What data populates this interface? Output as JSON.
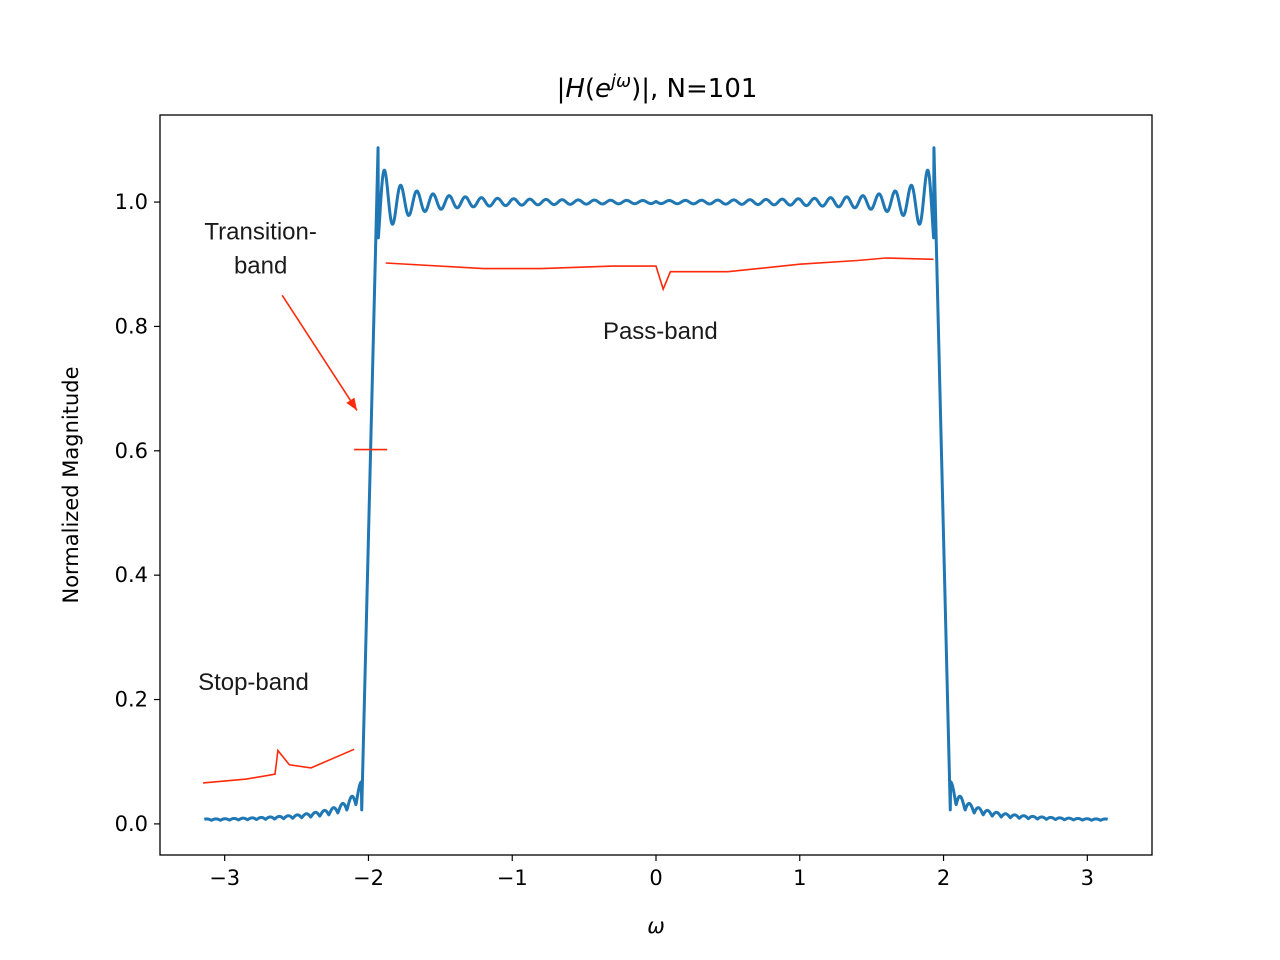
{
  "chart_data": {
    "type": "line",
    "title": {
      "prefix": "|",
      "H": "H",
      "open": "(",
      "e": "e",
      "sup": "jω",
      "close": ")|, N=101"
    },
    "xlabel": "ω",
    "ylabel": "Normalized Magnitude",
    "xlim": [
      -3.45,
      3.45
    ],
    "ylim": [
      -0.05,
      1.14
    ],
    "xticks": [
      -3,
      -2,
      -1,
      0,
      1,
      2,
      3
    ],
    "xtick_labels": [
      "−3",
      "−2",
      "−1",
      "0",
      "1",
      "2",
      "3"
    ],
    "yticks": [
      0.0,
      0.2,
      0.4,
      0.6,
      0.8,
      1.0
    ],
    "ytick_labels": [
      "0.0",
      "0.2",
      "0.4",
      "0.6",
      "0.8",
      "1.0"
    ],
    "series": [
      {
        "color": "#1f77b4",
        "sampled": {
          "x": [
            -3.1416,
            -3.0,
            -2.8,
            -2.6,
            -2.4,
            -2.3,
            -2.2,
            -2.15,
            -2.1,
            -2.07,
            -2.05,
            -2.03,
            -2.0,
            -1.97,
            -1.95,
            -1.93,
            -1.91,
            -1.88,
            -1.85,
            -1.8,
            -1.6,
            -1.2,
            -0.8,
            -0.4,
            0.0,
            0.4,
            0.8,
            1.2,
            1.6,
            1.8,
            1.85,
            1.88,
            1.91,
            1.93,
            1.95,
            1.97,
            2.0,
            2.03,
            2.05,
            2.07,
            2.1,
            2.15,
            2.2,
            2.3,
            2.4,
            2.6,
            2.8,
            3.0,
            3.1416
          ],
          "y": [
            0.005,
            0.007,
            0.01,
            0.012,
            0.016,
            0.02,
            0.03,
            0.045,
            0.09,
            0.01,
            0.2,
            0.4,
            0.6,
            0.8,
            0.95,
            1.09,
            1.0,
            0.96,
            1.03,
            0.97,
            1.01,
            1.0,
            1.0,
            1.0,
            1.0,
            1.0,
            1.0,
            1.0,
            1.01,
            0.97,
            1.03,
            0.96,
            1.0,
            1.09,
            0.95,
            0.8,
            0.6,
            0.4,
            0.2,
            0.01,
            0.09,
            0.045,
            0.03,
            0.02,
            0.016,
            0.012,
            0.01,
            0.007,
            0.005
          ]
        }
      }
    ],
    "annotation_color": "#ff2a0a",
    "annotations": [
      {
        "text": [
          "Transition-",
          "band"
        ],
        "x": -2.75,
        "y": 0.94,
        "arrow_from": [
          -2.6,
          0.85
        ],
        "arrow_to": [
          -2.08,
          0.665
        ],
        "tick_y": 0.602,
        "tick_x": [
          -2.1,
          -1.87
        ]
      },
      {
        "text": [
          "Pass-band"
        ],
        "x": 0.03,
        "y": 0.78
      },
      {
        "text": [
          "Stop-band"
        ],
        "x": -2.8,
        "y": 0.215
      }
    ],
    "brackets": {
      "pass": {
        "x": [
          -1.88,
          -1.2,
          -0.8,
          -0.3,
          0.0,
          0.05,
          0.1,
          0.2,
          0.5,
          1.0,
          1.4,
          1.6,
          1.93
        ],
        "y": [
          0.902,
          0.893,
          0.893,
          0.897,
          0.897,
          0.86,
          0.888,
          0.888,
          0.888,
          0.9,
          0.906,
          0.91,
          0.908
        ]
      },
      "stop": {
        "x": [
          -3.15,
          -2.85,
          -2.65,
          -2.63,
          -2.55,
          -2.4,
          -2.1
        ],
        "y": [
          0.066,
          0.072,
          0.08,
          0.118,
          0.095,
          0.09,
          0.12
        ]
      }
    }
  }
}
